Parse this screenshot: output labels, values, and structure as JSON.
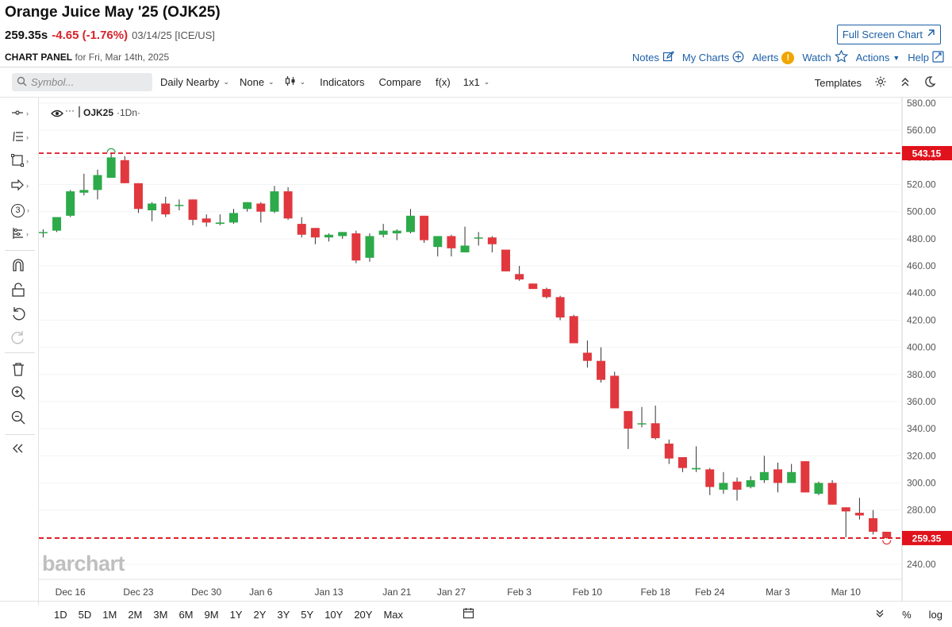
{
  "header": {
    "title": "Orange Juice May '25 (OJK25)",
    "last": "259.35s",
    "change": "-4.65 (-1.76%)",
    "meta": "03/14/25 [ICE/US]",
    "fullscreen_label": "Full Screen Chart",
    "panel_label": "CHART PANEL",
    "panel_date": "for Fri, Mar 14th, 2025"
  },
  "toplinks": {
    "notes": "Notes",
    "mycharts": "My Charts",
    "alerts": "Alerts",
    "alert_badge": "!",
    "watch": "Watch",
    "actions": "Actions",
    "help": "Help"
  },
  "toolbar": {
    "symbol_placeholder": "Symbol...",
    "frequency": "Daily Nearby",
    "overlay": "None",
    "indicators": "Indicators",
    "compare": "Compare",
    "fx": "f(x)",
    "layout": "1x1",
    "templates": "Templates"
  },
  "lefttools": {
    "drawing_count": "3"
  },
  "legend": {
    "symbol": "OJK25",
    "interval": "·1Dn·",
    "dots": "···"
  },
  "watermark": "barchart",
  "ranges": [
    "1D",
    "5D",
    "1M",
    "2M",
    "3M",
    "6M",
    "9M",
    "1Y",
    "2Y",
    "3Y",
    "5Y",
    "10Y",
    "20Y",
    "Max"
  ],
  "bottom_right": {
    "percent": "%",
    "log": "log"
  },
  "colors": {
    "up": "#2daa4a",
    "down": "#e0383e",
    "hline": "#e0121c",
    "grid": "#f3f3f3"
  },
  "chart_data": {
    "type": "candlestick",
    "symbol": "OJK25",
    "ylim": [
      230,
      590
    ],
    "y_ticks": [
      240,
      260,
      280,
      300,
      320,
      340,
      360,
      380,
      400,
      420,
      440,
      460,
      480,
      500,
      520,
      540,
      560,
      580
    ],
    "x_ticks": [
      {
        "label": "Dec 16",
        "index": 2
      },
      {
        "label": "Dec 23",
        "index": 7
      },
      {
        "label": "Dec 30",
        "index": 12
      },
      {
        "label": "Jan 6",
        "index": 16
      },
      {
        "label": "Jan 13",
        "index": 21
      },
      {
        "label": "Jan 21",
        "index": 26
      },
      {
        "label": "Jan 27",
        "index": 30
      },
      {
        "label": "Feb 3",
        "index": 35
      },
      {
        "label": "Feb 10",
        "index": 40
      },
      {
        "label": "Feb 18",
        "index": 45
      },
      {
        "label": "Feb 24",
        "index": 49
      },
      {
        "label": "Mar 3",
        "index": 54
      },
      {
        "label": "Mar 10",
        "index": 59
      }
    ],
    "hlines": [
      {
        "value": 543.15,
        "label": "543.15"
      },
      {
        "value": 259.35,
        "label": "259.35"
      }
    ],
    "candles": [
      {
        "o": 485,
        "h": 487,
        "l": 481,
        "c": 485
      },
      {
        "o": 486,
        "h": 496,
        "l": 485,
        "c": 496
      },
      {
        "o": 497,
        "h": 516,
        "l": 496,
        "c": 515
      },
      {
        "o": 514,
        "h": 528,
        "l": 512,
        "c": 516
      },
      {
        "o": 516,
        "h": 531,
        "l": 509,
        "c": 527
      },
      {
        "o": 525,
        "h": 543,
        "l": 525,
        "c": 540
      },
      {
        "o": 538,
        "h": 541,
        "l": 521,
        "c": 521
      },
      {
        "o": 521,
        "h": 521,
        "l": 499,
        "c": 502
      },
      {
        "o": 501,
        "h": 507,
        "l": 493,
        "c": 506
      },
      {
        "o": 506,
        "h": 511,
        "l": 496,
        "c": 498
      },
      {
        "o": 505,
        "h": 509,
        "l": 501,
        "c": 505
      },
      {
        "o": 509,
        "h": 509,
        "l": 490,
        "c": 494
      },
      {
        "o": 495,
        "h": 498,
        "l": 489,
        "c": 492
      },
      {
        "o": 491,
        "h": 498,
        "l": 490,
        "c": 492
      },
      {
        "o": 492,
        "h": 502,
        "l": 491,
        "c": 499
      },
      {
        "o": 502,
        "h": 507,
        "l": 500,
        "c": 507
      },
      {
        "o": 506,
        "h": 507,
        "l": 492,
        "c": 500
      },
      {
        "o": 500,
        "h": 519,
        "l": 499,
        "c": 515
      },
      {
        "o": 515,
        "h": 518,
        "l": 494,
        "c": 495
      },
      {
        "o": 491,
        "h": 496,
        "l": 481,
        "c": 483
      },
      {
        "o": 488,
        "h": 488,
        "l": 476,
        "c": 481
      },
      {
        "o": 481,
        "h": 484,
        "l": 478,
        "c": 483
      },
      {
        "o": 482,
        "h": 485,
        "l": 480,
        "c": 485
      },
      {
        "o": 484,
        "h": 486,
        "l": 462,
        "c": 464
      },
      {
        "o": 466,
        "h": 484,
        "l": 463,
        "c": 482
      },
      {
        "o": 483,
        "h": 491,
        "l": 481,
        "c": 486
      },
      {
        "o": 484,
        "h": 487,
        "l": 479,
        "c": 486
      },
      {
        "o": 485,
        "h": 502,
        "l": 484,
        "c": 497
      },
      {
        "o": 497,
        "h": 497,
        "l": 477,
        "c": 479
      },
      {
        "o": 474,
        "h": 482,
        "l": 467,
        "c": 482
      },
      {
        "o": 482,
        "h": 483,
        "l": 467,
        "c": 473
      },
      {
        "o": 470,
        "h": 489,
        "l": 470,
        "c": 475
      },
      {
        "o": 481,
        "h": 485,
        "l": 475,
        "c": 481
      },
      {
        "o": 481,
        "h": 482,
        "l": 470,
        "c": 476
      },
      {
        "o": 472,
        "h": 472,
        "l": 456,
        "c": 456
      },
      {
        "o": 454,
        "h": 460,
        "l": 449,
        "c": 450
      },
      {
        "o": 447,
        "h": 447,
        "l": 443,
        "c": 443
      },
      {
        "o": 443,
        "h": 444,
        "l": 436,
        "c": 437
      },
      {
        "o": 437,
        "h": 438,
        "l": 420,
        "c": 422
      },
      {
        "o": 423,
        "h": 424,
        "l": 403,
        "c": 403
      },
      {
        "o": 396,
        "h": 405,
        "l": 385,
        "c": 390
      },
      {
        "o": 390,
        "h": 400,
        "l": 374,
        "c": 376
      },
      {
        "o": 379,
        "h": 382,
        "l": 355,
        "c": 355
      },
      {
        "o": 353,
        "h": 353,
        "l": 325,
        "c": 340
      },
      {
        "o": 344,
        "h": 356,
        "l": 341,
        "c": 344
      },
      {
        "o": 344,
        "h": 357,
        "l": 332,
        "c": 333
      },
      {
        "o": 329,
        "h": 332,
        "l": 314,
        "c": 318
      },
      {
        "o": 319,
        "h": 319,
        "l": 308,
        "c": 311
      },
      {
        "o": 310,
        "h": 327,
        "l": 308,
        "c": 311
      },
      {
        "o": 310,
        "h": 311,
        "l": 291,
        "c": 297
      },
      {
        "o": 295,
        "h": 308,
        "l": 292,
        "c": 300
      },
      {
        "o": 301,
        "h": 304,
        "l": 287,
        "c": 295
      },
      {
        "o": 297,
        "h": 305,
        "l": 296,
        "c": 302
      },
      {
        "o": 302,
        "h": 320,
        "l": 300,
        "c": 308
      },
      {
        "o": 310,
        "h": 315,
        "l": 293,
        "c": 300
      },
      {
        "o": 300,
        "h": 314,
        "l": 300,
        "c": 308
      },
      {
        "o": 316,
        "h": 316,
        "l": 293,
        "c": 293
      },
      {
        "o": 292,
        "h": 301,
        "l": 291,
        "c": 300
      },
      {
        "o": 300,
        "h": 302,
        "l": 284,
        "c": 284
      },
      {
        "o": 282,
        "h": 282,
        "l": 260,
        "c": 279
      },
      {
        "o": 278,
        "h": 289,
        "l": 273,
        "c": 276
      },
      {
        "o": 274,
        "h": 280,
        "l": 262,
        "c": 264
      },
      {
        "o": 264,
        "h": 264,
        "l": 259,
        "c": 259.35
      }
    ]
  }
}
